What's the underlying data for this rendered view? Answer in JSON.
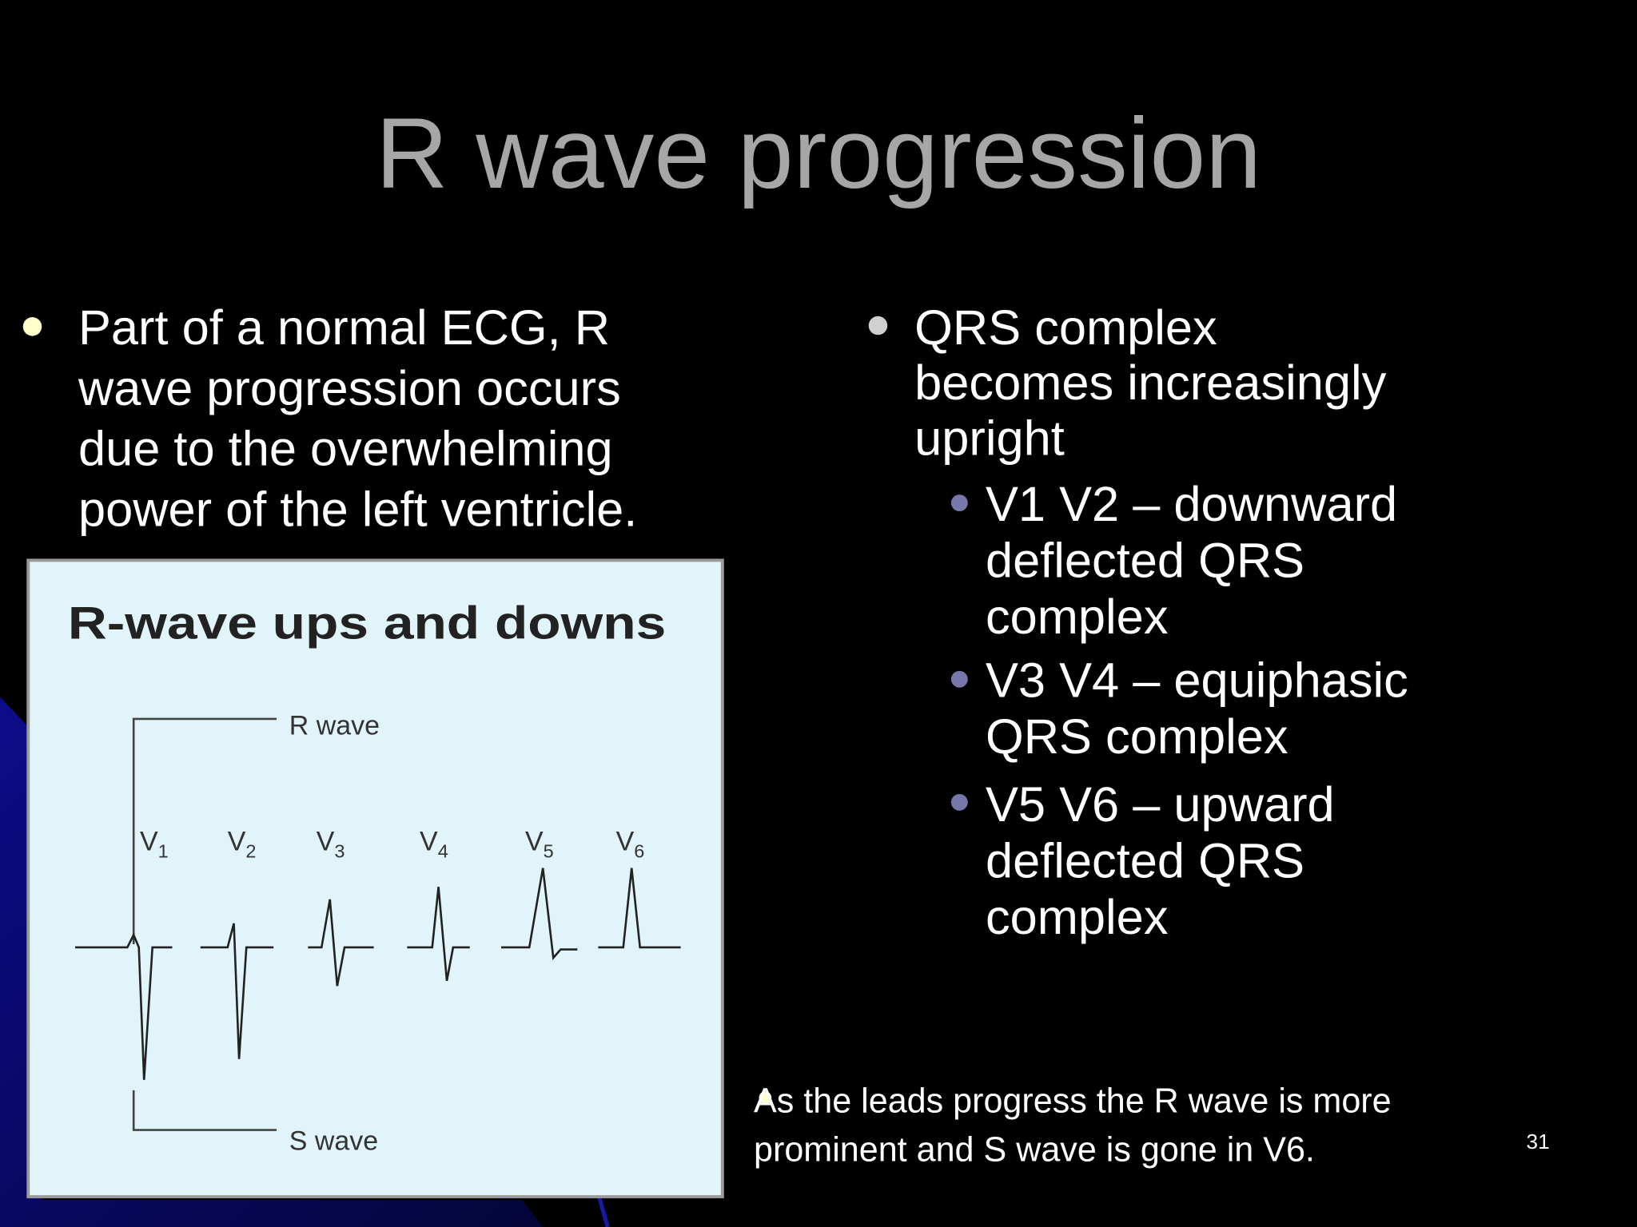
{
  "slide": {
    "title": "R wave progression",
    "left_bullet": {
      "lines": [
        "Part of a normal ECG, R",
        "wave progression occurs",
        "due to the overwhelming",
        "power of the left ventricle."
      ]
    },
    "figure": {
      "title": "R-wave ups and downs",
      "r_label": "R wave",
      "s_label": "S wave",
      "leads": [
        {
          "base": "V",
          "sub": "1"
        },
        {
          "base": "V",
          "sub": "2"
        },
        {
          "base": "V",
          "sub": "3"
        },
        {
          "base": "V",
          "sub": "4"
        },
        {
          "base": "V",
          "sub": "5"
        },
        {
          "base": "V",
          "sub": "6"
        }
      ]
    },
    "right_bullet": {
      "lines": [
        "QRS complex",
        "becomes increasingly",
        "upright"
      ],
      "sub_bullets": [
        {
          "lines": [
            "V1 V2 – downward",
            "deflected QRS",
            "complex"
          ]
        },
        {
          "lines": [
            "V3 V4 – equiphasic",
            "QRS complex"
          ]
        },
        {
          "lines": [
            "V5 V6 – upward",
            "deflected QRS",
            "complex"
          ]
        }
      ]
    },
    "footnote": {
      "lines": [
        "As the leads progress the R wave is more",
        "prominent and S wave is gone in V6."
      ]
    },
    "page_number": "31"
  }
}
